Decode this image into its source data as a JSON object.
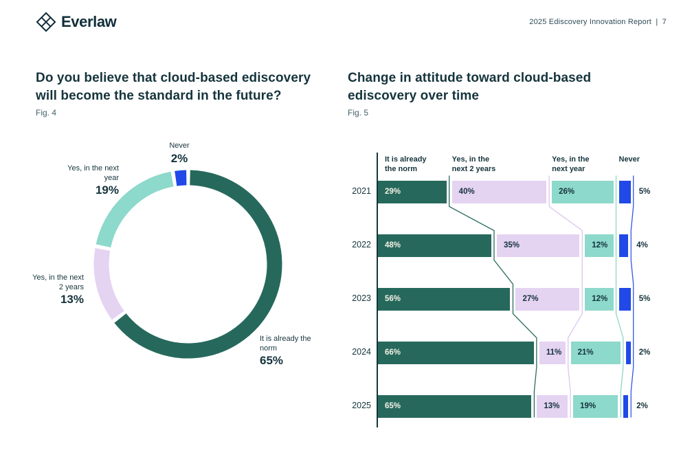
{
  "header": {
    "logo_text": "Everlaw",
    "report_label": "2025 Ediscovery Innovation Report",
    "separator": "|",
    "page_number": "7"
  },
  "colors": {
    "teal": "#26695C",
    "lavender": "#E5D3F2",
    "mint": "#8DD9CB",
    "blue": "#2149E8",
    "ink": "#14323C",
    "cream": "#F5F1E6",
    "axis": "#15343C",
    "connector_teal": "#2A6B5E",
    "connector_lavender": "#DCC6EE",
    "connector_mint": "#8ED5C8",
    "connector_blue": "#3056E9"
  },
  "fig4": {
    "title": "Do you believe that cloud-based ediscovery will become the standard in the future?",
    "fig_label": "Fig. 4",
    "chart_data": {
      "type": "pie",
      "subtype": "donut",
      "unit": "%",
      "start_angle_deg": -8.1,
      "direction": "clockwise",
      "segments": [
        {
          "label": "Never",
          "value": 2,
          "color_key": "blue"
        },
        {
          "label": "It is already the norm",
          "value": 65,
          "color_key": "teal"
        },
        {
          "label": "Yes, in the next 2 years",
          "value": 13,
          "color_key": "lavender"
        },
        {
          "label": "Yes, in the next year",
          "value": 19,
          "color_key": "mint"
        }
      ]
    }
  },
  "fig5": {
    "title": "Change in attitude toward cloud-based ediscovery over time",
    "fig_label": "Fig. 5",
    "chart_data": {
      "type": "bar",
      "subtype": "horizontal-stacked-100",
      "unit": "%",
      "legend_position": "column-headers-top",
      "categories": [
        "It is already the norm",
        "Yes, in the next 2 years",
        "Yes, in the next year",
        "Never"
      ],
      "category_color_keys": [
        "teal",
        "lavender",
        "mint",
        "blue"
      ],
      "years": [
        "2021",
        "2022",
        "2023",
        "2024",
        "2025"
      ],
      "series": [
        {
          "year": "2021",
          "values": [
            29,
            40,
            26,
            5
          ]
        },
        {
          "year": "2022",
          "values": [
            48,
            35,
            12,
            4
          ]
        },
        {
          "year": "2023",
          "values": [
            56,
            27,
            12,
            5
          ]
        },
        {
          "year": "2024",
          "values": [
            66,
            11,
            21,
            2
          ]
        },
        {
          "year": "2025",
          "values": [
            65,
            13,
            19,
            2
          ]
        }
      ]
    }
  }
}
